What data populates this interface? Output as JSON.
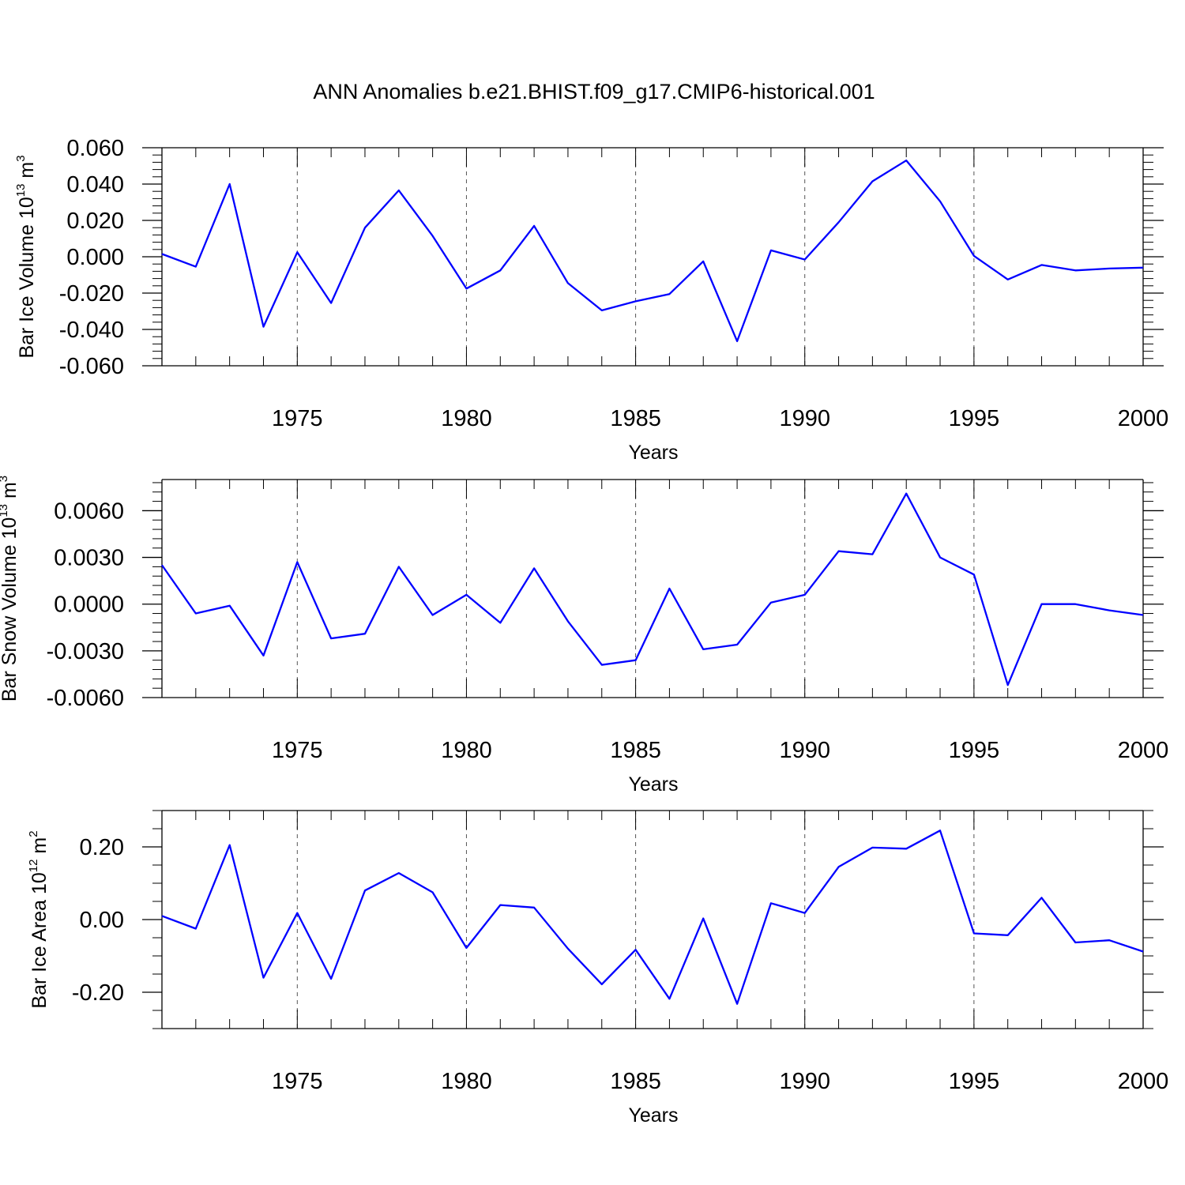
{
  "title": "ANN Anomalies b.e21.BHIST.f09_g17.CMIP6-historical.001",
  "colors": {
    "line": "#0000ff",
    "axis": "#000000",
    "grid": "#555555"
  },
  "chart_data": [
    {
      "type": "line",
      "ylabel": "Bar Ice Volume 10",
      "ylabel_exp": "13",
      "ylabel_unit": " m",
      "ylabel_unit_exp": "3",
      "xlabel": "Years",
      "xlim": [
        1971,
        2000
      ],
      "ylim": [
        -0.06,
        0.06
      ],
      "ytick_values": [
        -0.06,
        -0.04,
        -0.02,
        0.0,
        0.02,
        0.04,
        0.06
      ],
      "ytick_labels": [
        "-0.060",
        "-0.040",
        "-0.020",
        "0.000",
        "0.020",
        "0.040",
        "0.060"
      ],
      "yminor_step": 0.004,
      "xtick_values": [
        1975,
        1980,
        1985,
        1990,
        1995,
        2000
      ],
      "xtick_labels": [
        "1975",
        "1980",
        "1985",
        "1990",
        "1995",
        "2000"
      ],
      "x": [
        1971,
        1972,
        1973,
        1974,
        1975,
        1976,
        1977,
        1978,
        1979,
        1980,
        1981,
        1982,
        1983,
        1984,
        1985,
        1986,
        1987,
        1988,
        1989,
        1990,
        1991,
        1992,
        1993,
        1994,
        1995,
        1996,
        1997,
        1998,
        1999,
        2000
      ],
      "series": [
        {
          "name": "Bar Ice Volume",
          "values": [
            0.0015,
            -0.0055,
            0.04,
            -0.0385,
            0.0025,
            -0.0255,
            0.016,
            0.0365,
            0.0115,
            -0.0175,
            -0.0075,
            0.017,
            -0.0145,
            -0.0295,
            -0.0245,
            -0.0205,
            -0.0025,
            -0.0465,
            0.0035,
            -0.0015,
            0.019,
            0.0415,
            0.053,
            0.0305,
            0.0005,
            -0.0125,
            -0.0045,
            -0.0075,
            -0.0065,
            -0.006
          ]
        }
      ]
    },
    {
      "type": "line",
      "ylabel": "Bar Snow Volume 10",
      "ylabel_exp": "13",
      "ylabel_unit": " m",
      "ylabel_unit_exp": "3",
      "xlabel": "Years",
      "xlim": [
        1971,
        2000
      ],
      "ylim": [
        -0.006,
        0.008
      ],
      "ytick_values": [
        -0.006,
        -0.003,
        0.0,
        0.003,
        0.006
      ],
      "ytick_labels": [
        "-0.0060",
        "-0.0030",
        "0.0000",
        "0.0030",
        "0.0060"
      ],
      "yminor_step": 0.0006,
      "xtick_values": [
        1975,
        1980,
        1985,
        1990,
        1995,
        2000
      ],
      "xtick_labels": [
        "1975",
        "1980",
        "1985",
        "1990",
        "1995",
        "2000"
      ],
      "x": [
        1971,
        1972,
        1973,
        1974,
        1975,
        1976,
        1977,
        1978,
        1979,
        1980,
        1981,
        1982,
        1983,
        1984,
        1985,
        1986,
        1987,
        1988,
        1989,
        1990,
        1991,
        1992,
        1993,
        1994,
        1995,
        1996,
        1997,
        1998,
        1999,
        2000
      ],
      "series": [
        {
          "name": "Bar Snow Volume",
          "values": [
            0.0025,
            -0.0006,
            -0.0001,
            -0.0033,
            0.0027,
            -0.0022,
            -0.0019,
            0.0024,
            -0.0007,
            0.0006,
            -0.0012,
            0.0023,
            -0.0011,
            -0.0039,
            -0.0036,
            0.001,
            -0.0029,
            -0.0026,
            0.0001,
            0.0006,
            0.0034,
            0.0032,
            0.0071,
            0.003,
            0.0019,
            -0.0052,
            0.0,
            0.0,
            -0.0004,
            -0.0007
          ]
        }
      ]
    },
    {
      "type": "line",
      "ylabel": "Bar Ice Area 10",
      "ylabel_exp": "12",
      "ylabel_unit": " m",
      "ylabel_unit_exp": "2",
      "xlabel": "Years",
      "xlim": [
        1971,
        2000
      ],
      "ylim": [
        -0.3,
        0.3
      ],
      "ytick_values": [
        -0.2,
        0.0,
        0.2
      ],
      "ytick_labels": [
        "-0.20",
        "0.00",
        "0.20"
      ],
      "yminor_step": 0.05,
      "xtick_values": [
        1975,
        1980,
        1985,
        1990,
        1995,
        2000
      ],
      "xtick_labels": [
        "1975",
        "1980",
        "1985",
        "1990",
        "1995",
        "2000"
      ],
      "x": [
        1971,
        1972,
        1973,
        1974,
        1975,
        1976,
        1977,
        1978,
        1979,
        1980,
        1981,
        1982,
        1983,
        1984,
        1985,
        1986,
        1987,
        1988,
        1989,
        1990,
        1991,
        1992,
        1993,
        1994,
        1995,
        1996,
        1997,
        1998,
        1999,
        2000
      ],
      "series": [
        {
          "name": "Bar Ice Area",
          "values": [
            0.01,
            -0.025,
            0.205,
            -0.16,
            0.018,
            -0.163,
            0.08,
            0.128,
            0.075,
            -0.078,
            0.04,
            0.033,
            -0.08,
            -0.178,
            -0.083,
            -0.218,
            0.003,
            -0.232,
            0.045,
            0.018,
            0.145,
            0.198,
            0.195,
            0.245,
            -0.038,
            -0.043,
            0.06,
            -0.063,
            -0.057,
            -0.088
          ]
        }
      ]
    }
  ]
}
